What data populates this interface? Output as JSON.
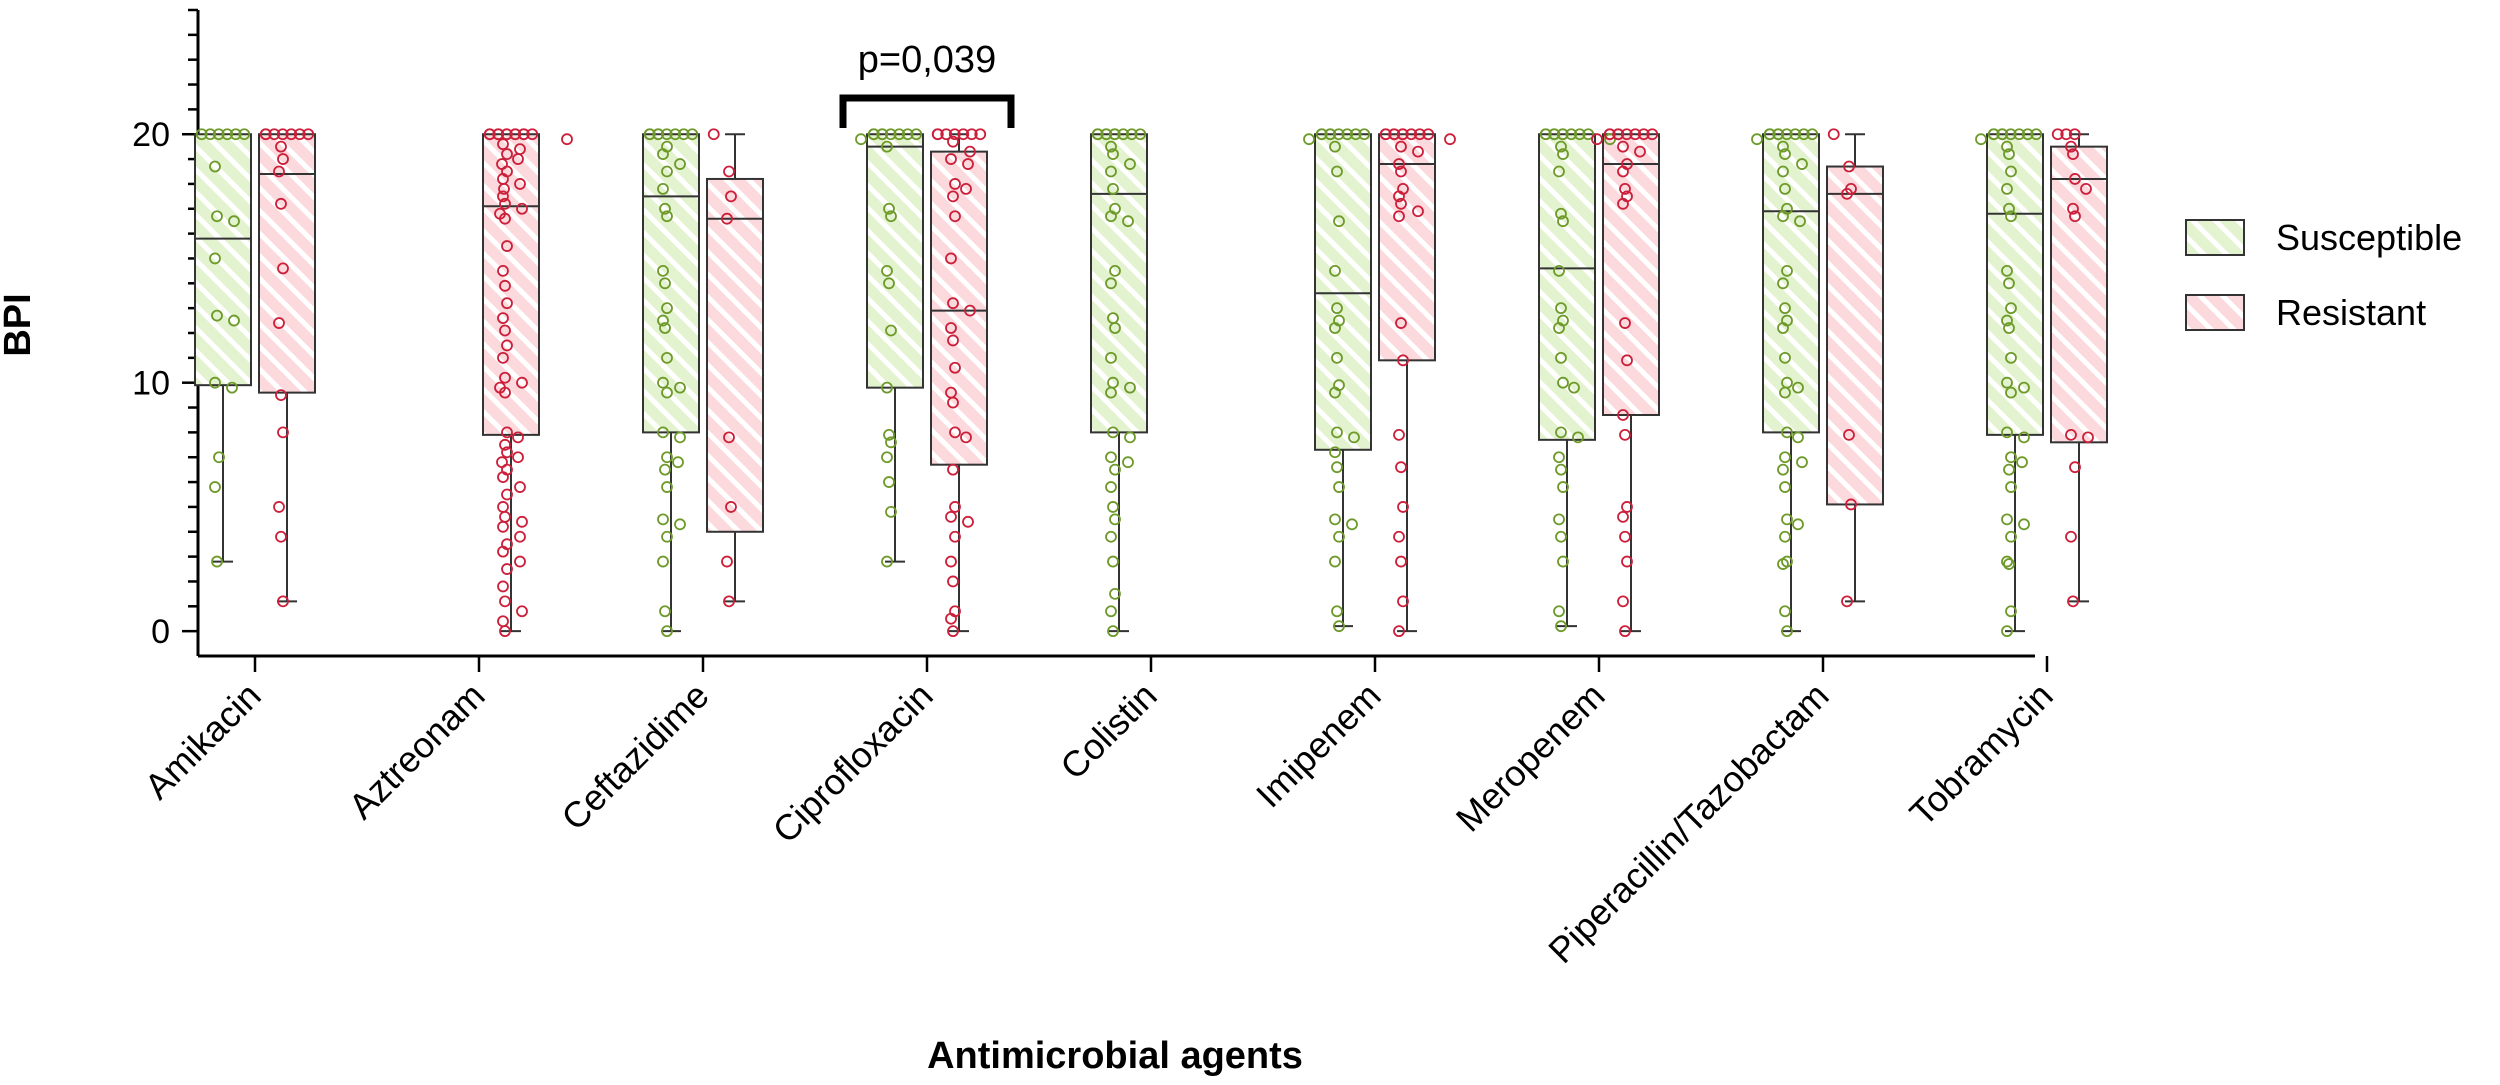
{
  "chart_data": {
    "type": "box",
    "title": "",
    "xlabel": "Antimicrobial agents",
    "ylabel": "BPI",
    "ylim": [
      -1,
      25
    ],
    "yticks": [
      0,
      10,
      20
    ],
    "colors": {
      "susceptible_fill": "#e3f3cf",
      "susceptible_stripe": "#ffffff",
      "susceptible_point": "#6e9a2a",
      "resistant_fill": "#fbd9dc",
      "resistant_stripe": "#ffffff",
      "resistant_point": "#cc1f3a",
      "box_line": "#333333"
    },
    "legend": [
      {
        "key": "susceptible",
        "label": "Susceptible"
      },
      {
        "key": "resistant",
        "label": "Resistant"
      }
    ],
    "annotation": {
      "text": "p=0,039",
      "category": "Ciprofloxacin"
    },
    "categories": [
      "Amikacin",
      "Aztreonam",
      "Ceftazidime",
      "Ciprofloxacin",
      "Colistin",
      "Imipenem",
      "Meropenem",
      "Piperacillin/Tazobactam",
      "Tobramycin"
    ],
    "series": [
      {
        "name": "Susceptible",
        "key": "susceptible",
        "boxes": [
          {
            "min": 2.8,
            "q1": 9.9,
            "median": 15.8,
            "q3": 20,
            "max": 20,
            "points": [
              20,
              20,
              20,
              20,
              20,
              20,
              18.7,
              16.7,
              16.5,
              15,
              12.7,
              12.5,
              10,
              9.8,
              7,
              5.8,
              2.8
            ]
          },
          null,
          {
            "min": 0,
            "q1": 8,
            "median": 17.5,
            "q3": 20,
            "max": 20,
            "points": [
              20,
              20,
              20,
              20,
              20,
              20,
              20,
              20,
              19.5,
              19.2,
              18.8,
              18.5,
              17.8,
              17,
              16.7,
              14.5,
              14,
              13,
              12.5,
              12.2,
              11,
              10,
              9.8,
              9.6,
              8,
              7.8,
              7,
              6.8,
              6.5,
              5.8,
              4.5,
              4.3,
              3.8,
              2.8,
              0.8,
              0
            ]
          },
          {
            "min": 2.8,
            "q1": 9.8,
            "median": 19.5,
            "q3": 20,
            "max": 20,
            "points": [
              20,
              20,
              20,
              20,
              20,
              20,
              20,
              20,
              19.8,
              19.5,
              17,
              16.7,
              14.5,
              14,
              12.1,
              9.8,
              7.9,
              7.6,
              7,
              6,
              4.8,
              2.8
            ]
          },
          {
            "min": 0,
            "q1": 8,
            "median": 17.6,
            "q3": 20,
            "max": 20,
            "points": [
              20,
              20,
              20,
              20,
              20,
              20,
              20,
              20,
              20,
              19.5,
              19.2,
              18.8,
              18.5,
              17.8,
              17,
              16.7,
              16.5,
              14.5,
              14,
              12.6,
              12.2,
              11,
              10,
              9.8,
              9.6,
              8,
              7.8,
              7,
              6.8,
              6.5,
              5.8,
              5,
              4.5,
              3.8,
              2.8,
              1.5,
              0.8,
              0
            ]
          },
          {
            "min": 0.2,
            "q1": 7.3,
            "median": 13.6,
            "q3": 20,
            "max": 20,
            "points": [
              20,
              20,
              20,
              20,
              20,
              20,
              20,
              20,
              19.8,
              19.5,
              18.5,
              16.5,
              14.5,
              13,
              12.5,
              12.2,
              11,
              9.9,
              9.6,
              8,
              7.8,
              7.2,
              6.6,
              5.8,
              4.5,
              4.3,
              3.8,
              2.8,
              0.8,
              0.2
            ]
          },
          {
            "min": 0.2,
            "q1": 7.7,
            "median": 14.6,
            "q3": 20,
            "max": 20,
            "points": [
              20,
              20,
              20,
              20,
              20,
              20,
              20,
              20,
              20,
              19.8,
              19.5,
              19.2,
              18.5,
              16.8,
              16.5,
              14.5,
              13,
              12.5,
              12.2,
              11,
              10,
              9.8,
              8,
              7.8,
              7,
              6.5,
              5.8,
              4.5,
              3.8,
              2.8,
              0.8,
              0.2
            ]
          },
          {
            "min": 0,
            "q1": 8,
            "median": 16.9,
            "q3": 20,
            "max": 20,
            "points": [
              20,
              20,
              20,
              20,
              20,
              20,
              20,
              20,
              19.8,
              19.5,
              19.2,
              18.8,
              18.5,
              17.8,
              17,
              16.7,
              16.5,
              14.5,
              14,
              13,
              12.5,
              12.2,
              11,
              10,
              9.8,
              9.6,
              8,
              7.8,
              7,
              6.8,
              6.5,
              5.8,
              4.5,
              4.3,
              3.8,
              2.8,
              2.7,
              0.8,
              0
            ]
          },
          {
            "min": 0,
            "q1": 7.9,
            "median": 16.8,
            "q3": 20,
            "max": 20,
            "points": [
              20,
              20,
              20,
              20,
              20,
              20,
              20,
              20,
              19.8,
              19.5,
              19.2,
              18.5,
              17.8,
              17,
              16.7,
              14.5,
              14,
              13,
              12.5,
              12.2,
              11,
              10,
              9.8,
              9.6,
              8,
              7.8,
              7,
              6.8,
              6.5,
              5.8,
              4.5,
              4.3,
              3.8,
              2.8,
              2.7,
              0.8,
              0
            ]
          }
        ]
      },
      {
        "name": "Resistant",
        "key": "resistant",
        "boxes": [
          {
            "min": 1.2,
            "q1": 9.6,
            "median": 18.4,
            "q3": 20,
            "max": 20,
            "points": [
              20,
              20,
              20,
              20,
              20,
              20,
              20,
              19.5,
              19,
              18.5,
              17.2,
              14.6,
              12.4,
              9.5,
              8,
              5,
              3.8,
              1.2
            ]
          },
          {
            "min": 0,
            "q1": 7.9,
            "median": 17.1,
            "q3": 20,
            "max": 20,
            "points": [
              20,
              20,
              20,
              20,
              20,
              20,
              20,
              20,
              20,
              20,
              20,
              19.8,
              19.6,
              19.4,
              19.2,
              19,
              18.8,
              18.5,
              18.2,
              18,
              17.8,
              17.5,
              17.2,
              17,
              16.8,
              16.6,
              15.5,
              14.5,
              13.9,
              13.2,
              12.6,
              12.1,
              11.5,
              11,
              10.2,
              10,
              9.8,
              9.6,
              8,
              7.8,
              7.5,
              7.2,
              7,
              6.8,
              6.5,
              6.2,
              5.8,
              5.5,
              5,
              4.6,
              4.4,
              4.2,
              3.8,
              3.5,
              3.2,
              2.8,
              2.5,
              1.8,
              1.2,
              0.8,
              0.4,
              0
            ]
          },
          {
            "min": 1.2,
            "q1": 4,
            "median": 16.6,
            "q3": 18.2,
            "max": 20,
            "points": [
              20,
              18.5,
              17.5,
              16.6,
              7.8,
              5,
              2.8,
              1.2
            ]
          },
          {
            "min": 0,
            "q1": 6.7,
            "median": 12.9,
            "q3": 19.3,
            "max": 20,
            "points": [
              20,
              20,
              20,
              20,
              20,
              20,
              20,
              19.7,
              19.3,
              19,
              18.8,
              18,
              17.8,
              17.5,
              16.7,
              15,
              13.2,
              12.9,
              12.2,
              11.7,
              10.6,
              9.6,
              9.2,
              8,
              7.8,
              6.5,
              5,
              4.6,
              4.4,
              3.8,
              2.8,
              2,
              0.8,
              0.5,
              0
            ]
          },
          null,
          {
            "min": 0,
            "q1": 10.9,
            "median": 18.8,
            "q3": 20,
            "max": 20,
            "points": [
              20,
              20,
              20,
              20,
              20,
              20,
              20,
              20,
              20,
              19.8,
              19.5,
              19.3,
              18.8,
              18.5,
              17.8,
              17.5,
              17.2,
              16.9,
              16.7,
              12.4,
              10.9,
              7.9,
              6.6,
              5,
              3.8,
              2.8,
              1.2,
              0
            ]
          },
          {
            "min": 0,
            "q1": 8.7,
            "median": 18.8,
            "q3": 20,
            "max": 20,
            "points": [
              20,
              20,
              20,
              20,
              20,
              20,
              20,
              20,
              19.8,
              19.5,
              19.3,
              18.8,
              18.5,
              17.8,
              17.5,
              17.2,
              12.4,
              10.9,
              8.7,
              7.9,
              5,
              4.6,
              3.8,
              2.8,
              1.2,
              0
            ]
          },
          {
            "min": 1.2,
            "q1": 5.1,
            "median": 17.6,
            "q3": 18.7,
            "max": 20,
            "points": [
              20,
              18.7,
              17.8,
              17.6,
              7.9,
              5.1,
              1.2
            ]
          },
          {
            "min": 1.2,
            "q1": 7.6,
            "median": 18.2,
            "q3": 19.5,
            "max": 20,
            "points": [
              20,
              20,
              20,
              19.5,
              19.2,
              18.2,
              17.8,
              17,
              16.7,
              7.9,
              7.8,
              6.6,
              3.8,
              1.2
            ]
          }
        ]
      }
    ]
  }
}
